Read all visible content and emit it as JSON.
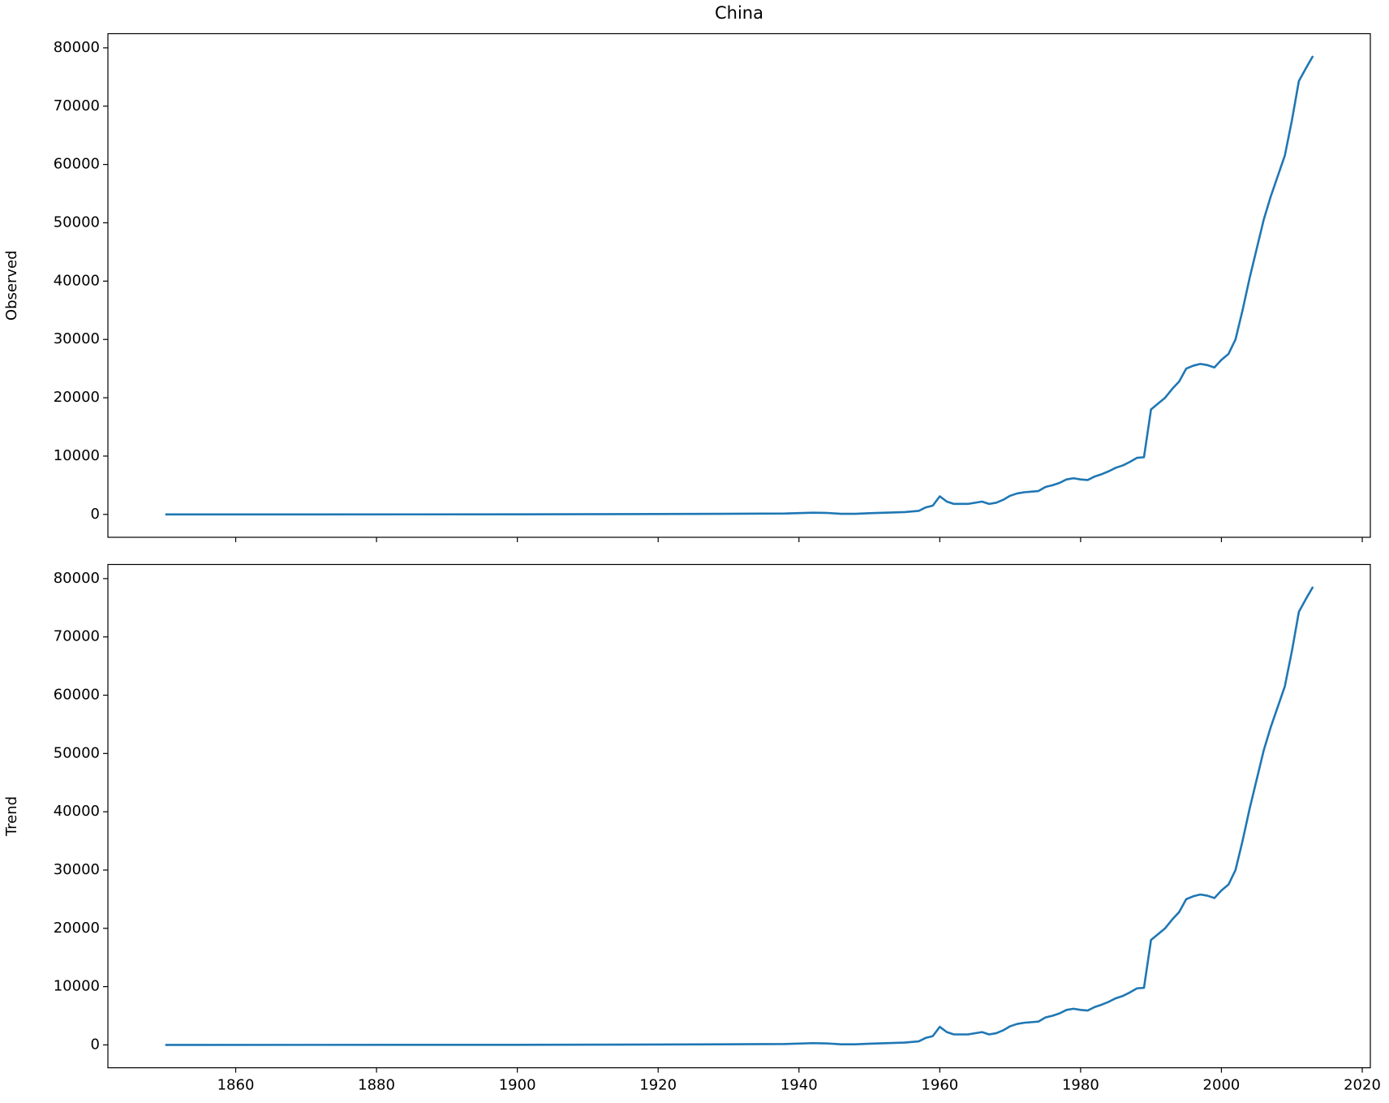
{
  "chart_data": [
    {
      "type": "line",
      "title": "China",
      "ylabel": "Observed",
      "x": [
        1850,
        1900,
        1920,
        1938,
        1942,
        1944,
        1946,
        1948,
        1950,
        1955,
        1957,
        1958,
        1959,
        1960,
        1961,
        1962,
        1964,
        1966,
        1967,
        1968,
        1969,
        1970,
        1971,
        1972,
        1974,
        1975,
        1976,
        1977,
        1978,
        1979,
        1980,
        1981,
        1982,
        1983,
        1984,
        1985,
        1986,
        1987,
        1988,
        1989,
        1990,
        1991,
        1992,
        1993,
        1994,
        1995,
        1996,
        1997,
        1998,
        1999,
        2000,
        2001,
        2002,
        2003,
        2004,
        2005,
        2006,
        2007,
        2008,
        2009,
        2010,
        2011,
        2012,
        2013
      ],
      "series": [
        {
          "color": "#1f77b4",
          "values": [
            0,
            10,
            60,
            150,
            300,
            250,
            100,
            100,
            200,
            400,
            600,
            1200,
            1500,
            3100,
            2200,
            1800,
            1800,
            2200,
            1800,
            2000,
            2500,
            3200,
            3600,
            3800,
            4000,
            4700,
            5000,
            5400,
            6000,
            6200,
            6000,
            5900,
            6500,
            6900,
            7400,
            8000,
            8400,
            9000,
            9700,
            9800,
            18000,
            19000,
            20000,
            21500,
            22800,
            25000,
            25500,
            25800,
            25600,
            25200,
            26500,
            27500,
            30000,
            35000,
            40500,
            45500,
            50500,
            54500,
            58000,
            61500,
            67500,
            74300,
            76500,
            78600
          ]
        }
      ],
      "xlim": [
        1841.85,
        2021.15
      ],
      "xticks": [
        1860,
        1880,
        1900,
        1920,
        1940,
        1960,
        1980,
        2000,
        2020
      ],
      "show_xtick_labels": false,
      "ylim": [
        -3925,
        82425
      ],
      "yticks": [
        0,
        10000,
        20000,
        30000,
        40000,
        50000,
        60000,
        70000,
        80000
      ]
    },
    {
      "type": "line",
      "ylabel": "Trend",
      "x": [
        1850,
        1900,
        1920,
        1938,
        1942,
        1944,
        1946,
        1948,
        1950,
        1955,
        1957,
        1958,
        1959,
        1960,
        1961,
        1962,
        1964,
        1966,
        1967,
        1968,
        1969,
        1970,
        1971,
        1972,
        1974,
        1975,
        1976,
        1977,
        1978,
        1979,
        1980,
        1981,
        1982,
        1983,
        1984,
        1985,
        1986,
        1987,
        1988,
        1989,
        1990,
        1991,
        1992,
        1993,
        1994,
        1995,
        1996,
        1997,
        1998,
        1999,
        2000,
        2001,
        2002,
        2003,
        2004,
        2005,
        2006,
        2007,
        2008,
        2009,
        2010,
        2011,
        2012,
        2013
      ],
      "series": [
        {
          "color": "#1f77b4",
          "values": [
            0,
            10,
            60,
            150,
            300,
            250,
            100,
            100,
            200,
            400,
            600,
            1200,
            1500,
            3100,
            2200,
            1800,
            1800,
            2200,
            1800,
            2000,
            2500,
            3200,
            3600,
            3800,
            4000,
            4700,
            5000,
            5400,
            6000,
            6200,
            6000,
            5900,
            6500,
            6900,
            7400,
            8000,
            8400,
            9000,
            9700,
            9800,
            18000,
            19000,
            20000,
            21500,
            22800,
            25000,
            25500,
            25800,
            25600,
            25200,
            26500,
            27500,
            30000,
            35000,
            40500,
            45500,
            50500,
            54500,
            58000,
            61500,
            67500,
            74300,
            76500,
            78600
          ]
        }
      ],
      "xlim": [
        1841.85,
        2021.15
      ],
      "xticks": [
        1860,
        1880,
        1900,
        1920,
        1940,
        1960,
        1980,
        2000,
        2020
      ],
      "show_xtick_labels": true,
      "ylim": [
        -3925,
        82425
      ],
      "yticks": [
        0,
        10000,
        20000,
        30000,
        40000,
        50000,
        60000,
        70000,
        80000
      ]
    }
  ]
}
